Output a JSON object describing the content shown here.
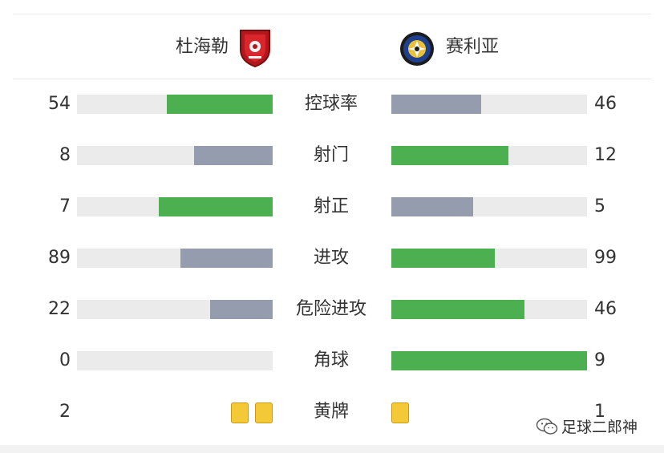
{
  "home": {
    "name": "杜海勒",
    "logo_icon": "duhail-club-crest-icon"
  },
  "away": {
    "name": "赛利亚",
    "logo_icon": "sailiya-club-crest-icon"
  },
  "colors": {
    "leader": "#4caf50",
    "trailer": "#959cad",
    "track": "#ebebeb",
    "yellow_card": "#f3c937"
  },
  "stats": [
    {
      "label": "控球率",
      "home": "54",
      "away": "46",
      "home_fill": 0.54,
      "away_fill": 0.46,
      "home_color": "green",
      "away_color": "gray"
    },
    {
      "label": "射门",
      "home": "8",
      "away": "12",
      "home_fill": 0.4,
      "away_fill": 0.6,
      "home_color": "gray",
      "away_color": "green"
    },
    {
      "label": "射正",
      "home": "7",
      "away": "5",
      "home_fill": 0.58,
      "away_fill": 0.42,
      "home_color": "green",
      "away_color": "gray"
    },
    {
      "label": "进攻",
      "home": "89",
      "away": "99",
      "home_fill": 0.47,
      "away_fill": 0.53,
      "home_color": "gray",
      "away_color": "green"
    },
    {
      "label": "危险进攻",
      "home": "22",
      "away": "46",
      "home_fill": 0.32,
      "away_fill": 0.68,
      "home_color": "gray",
      "away_color": "green"
    },
    {
      "label": "角球",
      "home": "0",
      "away": "9",
      "home_fill": 0.0,
      "away_fill": 1.0,
      "home_color": "gray",
      "away_color": "green"
    }
  ],
  "yellow_cards": {
    "label": "黄牌",
    "home": "2",
    "away": "1",
    "home_count": 2,
    "away_count": 1
  },
  "watermark": {
    "text": "足球二郎神",
    "icon": "wechat-icon"
  }
}
